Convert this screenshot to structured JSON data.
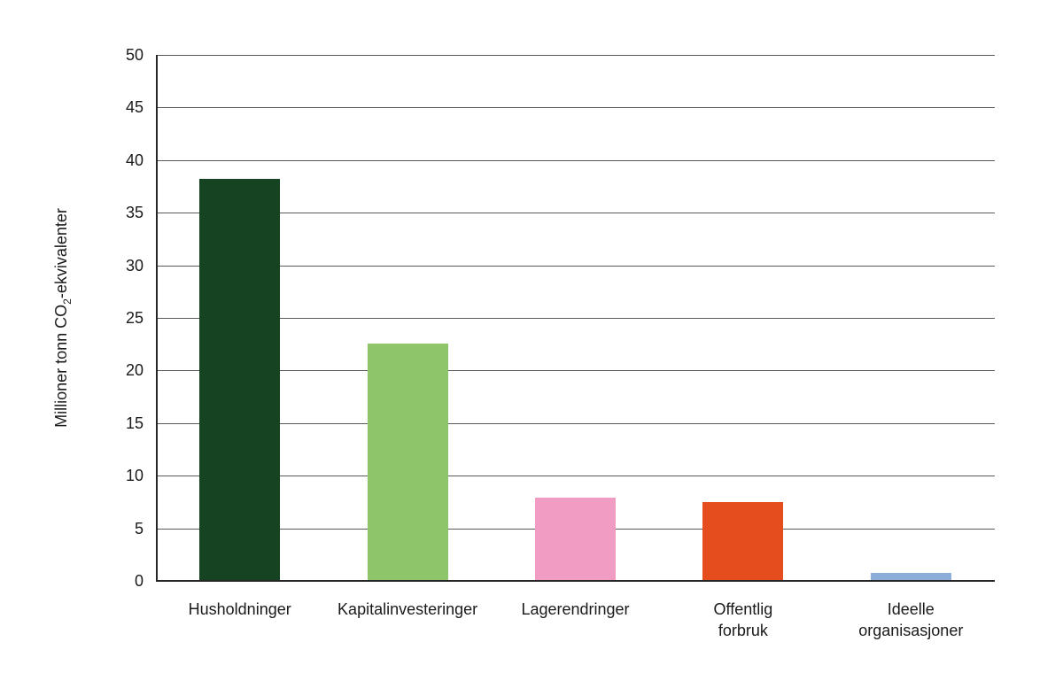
{
  "figure": {
    "background": "#ffffff"
  },
  "chart_data": {
    "type": "bar",
    "categories": [
      "Husholdninger",
      "Kapitalinvesteringer",
      "Lagerendringer",
      "Offentlig forbruk",
      "Ideelle organisasjoner"
    ],
    "category_lines": [
      [
        "Husholdninger"
      ],
      [
        "Kapitalinvesteringer"
      ],
      [
        "Lagerendringer"
      ],
      [
        "Offentlig",
        "forbruk"
      ],
      [
        "Ideelle",
        "organisasjoner"
      ]
    ],
    "values": [
      38.2,
      22.6,
      7.9,
      7.5,
      0.8
    ],
    "bar_colors": [
      "#164423",
      "#8ec46a",
      "#f09cc3",
      "#e54d1f",
      "#8badd8"
    ],
    "title": "",
    "xlabel": "",
    "ylabel": "Millioner tonn CO2-ekvivalenter",
    "ylabel_parts": {
      "pre": "Millioner tonn CO",
      "sub": "2",
      "post": "-ekvivalenter"
    },
    "ylim": [
      0,
      50
    ],
    "yticks": [
      0,
      5,
      10,
      15,
      20,
      25,
      30,
      35,
      40,
      45,
      50
    ],
    "grid": "horizontal",
    "legend": "none",
    "text_color": "#1a1a1a",
    "gridline_color": "#595959",
    "axis_color": "#262626"
  }
}
